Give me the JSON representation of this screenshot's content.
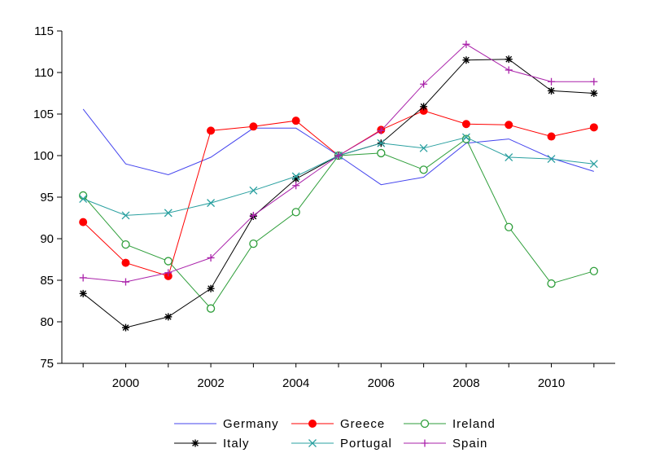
{
  "chart_data": {
    "type": "line",
    "title": "",
    "xlabel": "",
    "ylabel": "",
    "x": [
      1999,
      2000,
      2001,
      2002,
      2003,
      2004,
      2005,
      2006,
      2007,
      2008,
      2009,
      2010,
      2011
    ],
    "xlim": [
      1998.5,
      2011.5
    ],
    "ylim": [
      75,
      115
    ],
    "xticks": [
      {
        "value": 2000,
        "label": "2000"
      },
      {
        "value": 2002,
        "label": "2002"
      },
      {
        "value": 2004,
        "label": "2004"
      },
      {
        "value": 2006,
        "label": "2006"
      },
      {
        "value": 2008,
        "label": "2008"
      },
      {
        "value": 2010,
        "label": "2010"
      }
    ],
    "yticks": [
      {
        "value": 75,
        "label": "75"
      },
      {
        "value": 80,
        "label": "80"
      },
      {
        "value": 85,
        "label": "85"
      },
      {
        "value": 90,
        "label": "90"
      },
      {
        "value": 95,
        "label": "95"
      },
      {
        "value": 100,
        "label": "100"
      },
      {
        "value": 105,
        "label": "105"
      },
      {
        "value": 110,
        "label": "110"
      },
      {
        "value": 115,
        "label": "115"
      }
    ],
    "grid": false,
    "legend_position": "bottom",
    "series": [
      {
        "name": "Germany",
        "color": "#4444ee",
        "marker": "none",
        "values": [
          105.6,
          99.0,
          97.7,
          99.8,
          103.3,
          103.3,
          100.0,
          96.5,
          97.4,
          101.5,
          102.0,
          99.7,
          98.1
        ]
      },
      {
        "name": "Greece",
        "color": "#ff0000",
        "marker": "filled-circle",
        "values": [
          92.0,
          87.1,
          85.5,
          103.0,
          103.5,
          104.2,
          100.0,
          103.1,
          105.4,
          103.8,
          103.7,
          102.3,
          103.4
        ]
      },
      {
        "name": "Ireland",
        "color": "#2e9e3a",
        "marker": "open-circle",
        "values": [
          95.2,
          89.3,
          87.3,
          81.6,
          89.4,
          93.2,
          100.0,
          100.3,
          98.3,
          102.0,
          91.4,
          84.6,
          86.1
        ]
      },
      {
        "name": "Italy",
        "color": "#000000",
        "marker": "asterisk",
        "values": [
          83.4,
          79.3,
          80.6,
          84.0,
          92.7,
          97.2,
          100.0,
          101.5,
          105.9,
          111.5,
          111.6,
          107.8,
          107.5
        ]
      },
      {
        "name": "Portugal",
        "color": "#2aa0a0",
        "marker": "x",
        "values": [
          94.8,
          92.8,
          93.1,
          94.3,
          95.8,
          97.5,
          100.0,
          101.5,
          100.9,
          102.2,
          99.8,
          99.6,
          99.0
        ]
      },
      {
        "name": "Spain",
        "color": "#aa22aa",
        "marker": "plus",
        "values": [
          85.3,
          84.8,
          85.9,
          87.7,
          92.8,
          96.4,
          100.0,
          103.0,
          108.6,
          113.4,
          110.3,
          108.9,
          108.9
        ]
      }
    ]
  }
}
